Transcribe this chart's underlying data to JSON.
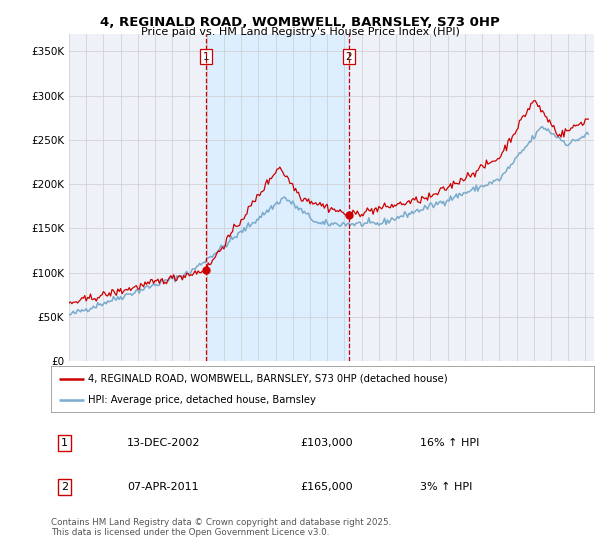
{
  "title": "4, REGINALD ROAD, WOMBWELL, BARNSLEY, S73 0HP",
  "subtitle": "Price paid vs. HM Land Registry's House Price Index (HPI)",
  "legend_label_red": "4, REGINALD ROAD, WOMBWELL, BARNSLEY, S73 0HP (detached house)",
  "legend_label_blue": "HPI: Average price, detached house, Barnsley",
  "annotation1_label": "1",
  "annotation1_date": "13-DEC-2002",
  "annotation1_price": "£103,000",
  "annotation1_hpi": "16% ↑ HPI",
  "annotation2_label": "2",
  "annotation2_date": "07-APR-2011",
  "annotation2_price": "£165,000",
  "annotation2_hpi": "3% ↑ HPI",
  "footer": "Contains HM Land Registry data © Crown copyright and database right 2025.\nThis data is licensed under the Open Government Licence v3.0.",
  "ylim": [
    0,
    370000
  ],
  "yticks": [
    0,
    50000,
    100000,
    150000,
    200000,
    250000,
    300000,
    350000
  ],
  "ytick_labels": [
    "£0",
    "£50K",
    "£100K",
    "£150K",
    "£200K",
    "£250K",
    "£300K",
    "£350K"
  ],
  "xlim_start": 1995,
  "xlim_end": 2025.5,
  "x_sale1": 2002.958,
  "x_sale2": 2011.25,
  "y_sale1": 103000,
  "y_sale2": 165000,
  "color_red": "#cc0000",
  "color_blue": "#7aaacc",
  "color_blue_band": "#ddeeff",
  "color_vline": "#cc0000",
  "color_grid": "#cccccc",
  "background_plot": "#eef2f8",
  "background_fig": "#ffffff"
}
